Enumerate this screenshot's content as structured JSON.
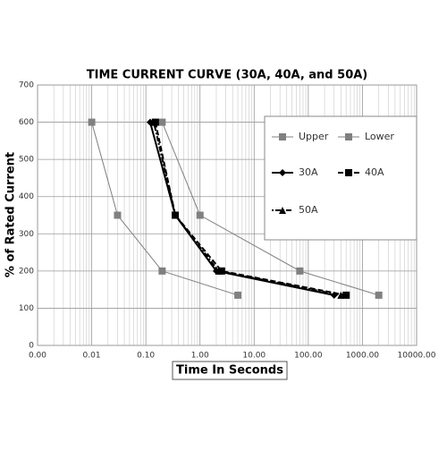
{
  "chart_data": {
    "type": "line",
    "title": "TIME CURRENT CURVE (30A, 40A, and 50A)",
    "x_label": "Time In Seconds",
    "y_label": "% of Rated Current",
    "xscale": "log",
    "xlim": [
      0.001,
      10000
    ],
    "xticks": [
      {
        "value": 0.001,
        "label": "0.00"
      },
      0.01,
      {
        "value": 0.1,
        "label": "0.10"
      },
      {
        "value": 1,
        "label": "1.00"
      },
      {
        "value": 10,
        "label": "10.00"
      },
      {
        "value": 100,
        "label": "100.00"
      },
      {
        "value": 1000,
        "label": "1000.00"
      },
      {
        "value": 10000,
        "label": "10000.00"
      }
    ],
    "ylim": [
      0,
      700
    ],
    "yticks": [
      0,
      100,
      200,
      300,
      400,
      500,
      600,
      700
    ],
    "grid": true,
    "minor_grid": true,
    "legend": "upper right",
    "series": [
      {
        "name": "Upper",
        "color": "#808080",
        "marker": "square",
        "dash": "solid",
        "x": [
          0.2,
          1,
          70,
          2000
        ],
        "values": [
          600,
          350,
          200,
          135
        ]
      },
      {
        "name": "Lower",
        "color": "#808080",
        "marker": "square",
        "dash": "solid",
        "x": [
          0.01,
          0.03,
          0.2,
          5
        ],
        "values": [
          600,
          350,
          200,
          135
        ]
      },
      {
        "name": "30A",
        "color": "#000000",
        "marker": "diamond",
        "dash": "solid",
        "x": [
          0.12,
          0.35,
          2,
          300
        ],
        "values": [
          600,
          350,
          200,
          135
        ]
      },
      {
        "name": "40A",
        "color": "#000000",
        "marker": "square",
        "dash": "dashed",
        "x": [
          0.15,
          0.35,
          2.5,
          500
        ],
        "values": [
          600,
          350,
          200,
          135
        ]
      },
      {
        "name": "50A",
        "color": "#000000",
        "marker": "triangle",
        "dash": "dotted",
        "x": [
          0.14,
          0.35,
          2.2,
          400
        ],
        "values": [
          600,
          350,
          200,
          135
        ]
      }
    ]
  }
}
